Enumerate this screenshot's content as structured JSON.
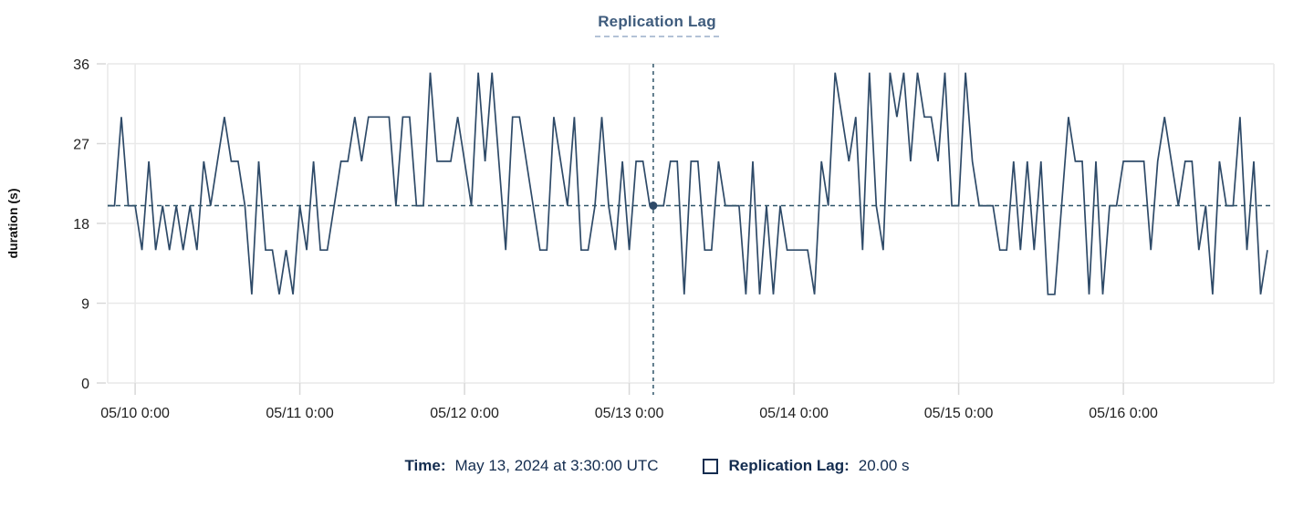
{
  "title": "Replication Lag",
  "y_axis": {
    "label": "duration (s)"
  },
  "tooltip": {
    "time_label": "Time:",
    "time_value": "May 13, 2024 at 3:30:00 UTC",
    "series_label": "Replication Lag:",
    "series_value": "20.00 s"
  },
  "colors": {
    "line": "#2e4a68",
    "crosshair": "#2e5468",
    "grid": "#e9e9e9",
    "tick": "#d8d8d8",
    "axis_text": "#1f1f1f",
    "title_text": "#3f5c7d",
    "legend_text": "#132c4f"
  },
  "chart_data": {
    "type": "line",
    "title": "Replication Lag",
    "xlabel": "",
    "ylabel": "duration (s)",
    "ylim": [
      0,
      36
    ],
    "y_ticks": [
      0,
      9,
      18,
      27,
      36
    ],
    "grid": true,
    "x_start": "2024-05-09 20:00 UTC",
    "x_interval": "1 hour",
    "x_tick_labels": [
      "05/10 0:00",
      "05/11 0:00",
      "05/12 0:00",
      "05/13 0:00",
      "05/14 0:00",
      "05/15 0:00",
      "05/16 0:00"
    ],
    "x_tick_hour_offsets": [
      4,
      28,
      52,
      76,
      100,
      124,
      148
    ],
    "series": [
      {
        "name": "Replication Lag",
        "unit": "s",
        "values": [
          20,
          20,
          30,
          20,
          20,
          15,
          25,
          15,
          20,
          15,
          20,
          15,
          20,
          15,
          25,
          20,
          25,
          30,
          25,
          25,
          20,
          10,
          25,
          15,
          15,
          10,
          15,
          10,
          20,
          15,
          25,
          15,
          15,
          20,
          25,
          25,
          30,
          25,
          30,
          30,
          30,
          30,
          20,
          30,
          30,
          20,
          20,
          35,
          25,
          25,
          25,
          30,
          25,
          20,
          35,
          25,
          35,
          25,
          15,
          30,
          30,
          25,
          20,
          15,
          15,
          30,
          25,
          20,
          30,
          15,
          15,
          20,
          30,
          20,
          15,
          25,
          15,
          25,
          25,
          20,
          20,
          20,
          25,
          25,
          10,
          25,
          25,
          15,
          15,
          25,
          20,
          20,
          20,
          10,
          25,
          10,
          20,
          10,
          20,
          15,
          15,
          15,
          15,
          10,
          25,
          20,
          35,
          30,
          25,
          30,
          15,
          35,
          20,
          15,
          35,
          30,
          35,
          25,
          35,
          30,
          30,
          25,
          35,
          20,
          20,
          35,
          25,
          20,
          20,
          20,
          15,
          15,
          25,
          15,
          25,
          15,
          25,
          10,
          10,
          20,
          30,
          25,
          25,
          10,
          25,
          10,
          20,
          20,
          25,
          25,
          25,
          25,
          15,
          25,
          30,
          25,
          20,
          25,
          25,
          15,
          20,
          10,
          25,
          20,
          20,
          30,
          15,
          25,
          10,
          15
        ]
      }
    ],
    "crosshair": {
      "hour_offset": 79.5,
      "time": "May 13, 2024 at 3:30:00 UTC",
      "value": 20,
      "value_label": "20.00 s",
      "reference_line_value": 20
    }
  }
}
